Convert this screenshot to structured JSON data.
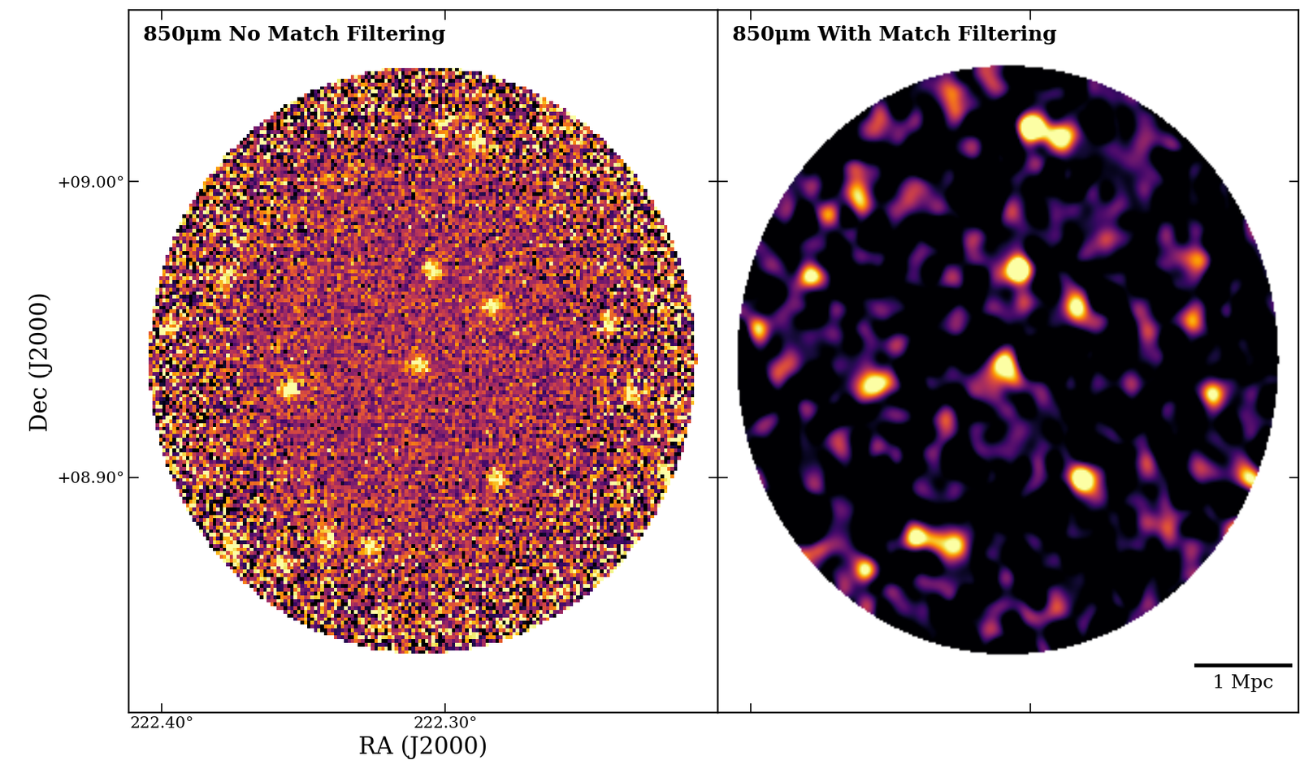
{
  "chart_data": [
    {
      "type": "image",
      "title": "850μm No Match Filtering",
      "xlabel": "RA (J2000)",
      "ylabel": "Dec (J2000)",
      "xlim": [
        222.4117,
        222.2038
      ],
      "ylim": [
        8.8204,
        9.058
      ],
      "xticks": [
        {
          "value": 222.4,
          "label": "222.40°"
        },
        {
          "value": 222.3,
          "label": "222.30°"
        }
      ],
      "yticks": [
        {
          "value": 8.9,
          "label": "+08.90°"
        },
        {
          "value": 9.0,
          "label": "+09.00°"
        }
      ],
      "field": {
        "center": [
          222.308,
          8.9395
        ],
        "radius": 0.0997
      },
      "sources": {
        "ra": [
          222.3009,
          222.2886,
          222.3044,
          222.2833,
          222.3091,
          222.355,
          222.2342,
          222.2217,
          222.2813,
          222.3266,
          222.3412,
          222.3585,
          222.3784,
          222.3982,
          222.3754,
          222.2424
        ],
        "dec": [
          9.019,
          9.0129,
          8.9703,
          8.9577,
          8.9378,
          8.9297,
          8.9289,
          8.8989,
          8.8989,
          8.8759,
          8.879,
          8.8686,
          8.9675,
          8.9499,
          8.8748,
          8.9521
        ]
      },
      "color": "inferno"
    },
    {
      "type": "image",
      "title": "850μm With Match Filtering",
      "xlim": [
        222.4117,
        222.2038
      ],
      "ylim": [
        8.8204,
        9.058
      ],
      "xticks": [
        {
          "value": 222.4,
          "label": "222.40°"
        },
        {
          "value": 222.3,
          "label": "222.30°"
        }
      ],
      "yticks": [
        {
          "value": 8.9,
          "label": "+08.90°"
        },
        {
          "value": 9.0,
          "label": "+09.00°"
        }
      ],
      "tick_labels": false,
      "field": {
        "center": [
          222.308,
          8.9395
        ],
        "radius": 0.0997
      },
      "sources": {
        "ra": [
          222.3009,
          222.2886,
          222.3044,
          222.2833,
          222.3091,
          222.355,
          222.2342,
          222.2217,
          222.2813,
          222.3266,
          222.3412,
          222.3585,
          222.3784,
          222.3982,
          222.3754,
          222.2424
        ],
        "dec": [
          9.019,
          9.0129,
          8.9703,
          8.9577,
          8.9378,
          8.9297,
          8.9289,
          8.8989,
          8.8989,
          8.8759,
          8.879,
          8.8686,
          8.9675,
          8.9499,
          8.8748,
          8.9521
        ]
      },
      "scale_bar": {
        "label": "1 Mpc",
        "length": 0.0336
      },
      "color": "inferno"
    }
  ]
}
